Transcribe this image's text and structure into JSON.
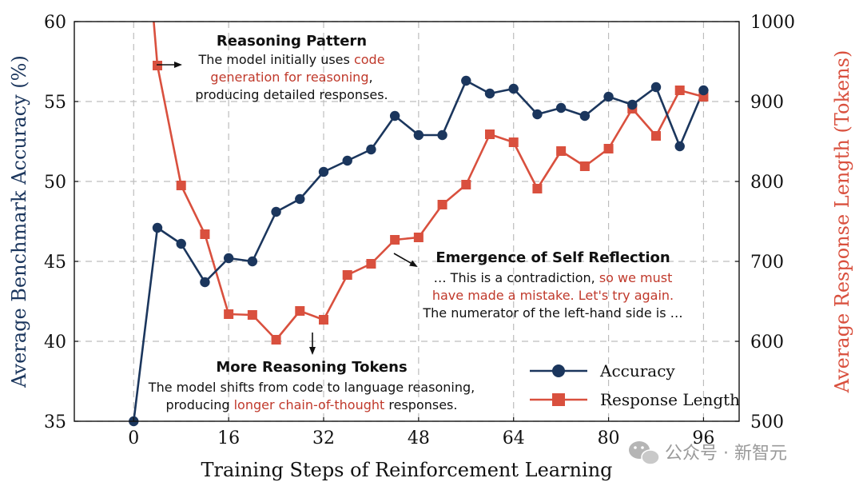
{
  "chart_data": {
    "type": "line",
    "xlabel": "Training Steps of Reinforcement Learning",
    "ylabel_left": "Average Benchmark Accuracy (%)",
    "ylabel_right": "Average Response Length (Tokens)",
    "xlim": [
      -10,
      102
    ],
    "ylim_left": [
      35,
      60
    ],
    "ylim_right": [
      500,
      1000
    ],
    "x_ticks": [
      "0",
      "16",
      "32",
      "48",
      "64",
      "80",
      "96"
    ],
    "x_tick_values": [
      0,
      16,
      32,
      48,
      64,
      80,
      96
    ],
    "y_left_ticks": [
      "35",
      "40",
      "45",
      "50",
      "55",
      "60"
    ],
    "y_left_tick_values": [
      35,
      40,
      45,
      50,
      55,
      60
    ],
    "y_right_ticks": [
      "500",
      "600",
      "700",
      "800",
      "900",
      "1000"
    ],
    "y_right_tick_values": [
      500,
      600,
      700,
      800,
      900,
      1000
    ],
    "grid": true,
    "legend_position": "bottom-right",
    "series": [
      {
        "name": "Accuracy",
        "axis": "left",
        "color": "#1b365d",
        "marker": "circle",
        "x": [
          0,
          4,
          8,
          12,
          16,
          20,
          24,
          28,
          32,
          36,
          40,
          44,
          48,
          52,
          56,
          60,
          64,
          68,
          72,
          76,
          80,
          84,
          88,
          92,
          96
        ],
        "values": [
          35.0,
          47.1,
          46.1,
          43.7,
          45.2,
          45.0,
          48.1,
          48.9,
          50.6,
          51.3,
          52.0,
          54.1,
          52.9,
          52.9,
          56.3,
          55.5,
          55.8,
          54.2,
          54.6,
          54.1,
          55.3,
          54.8,
          55.9,
          52.2,
          55.7
        ]
      },
      {
        "name": "Response Length",
        "axis": "right",
        "color": "#d9503e",
        "marker": "square",
        "x": [
          0,
          4,
          8,
          12,
          16,
          20,
          24,
          28,
          32,
          36,
          40,
          44,
          48,
          52,
          56,
          60,
          64,
          68,
          72,
          76,
          80,
          84,
          88,
          92,
          96
        ],
        "values": [
          1300,
          945,
          795,
          734,
          634,
          633,
          602,
          638,
          627,
          683,
          697,
          727,
          730,
          771,
          796,
          859,
          849,
          791,
          838,
          819,
          841,
          891,
          857,
          914,
          906
        ],
        "marker_from_index": 1
      }
    ],
    "annotations": [
      {
        "title": "Reasoning Pattern",
        "lines": [
          [
            {
              "t": "The model initially uses ",
              "c": "#111111"
            },
            {
              "t": "code",
              "c": "#c0392b"
            }
          ],
          [
            {
              "t": "generation for reasoning",
              "c": "#c0392b"
            },
            {
              "t": ",",
              "c": "#111111"
            }
          ],
          [
            {
              "t": "producing detailed responses.",
              "c": "#111111"
            }
          ]
        ]
      },
      {
        "title": "Emergence of Self Reflection",
        "lines": [
          [
            {
              "t": "… This is a contradiction, ",
              "c": "#111111"
            },
            {
              "t": "so we must",
              "c": "#c0392b"
            }
          ],
          [
            {
              "t": "have made a mistake. Let's try again.",
              "c": "#c0392b"
            }
          ],
          [
            {
              "t": "The numerator of the left-hand side is …",
              "c": "#111111"
            }
          ]
        ]
      },
      {
        "title": "More Reasoning Tokens",
        "lines": [
          [
            {
              "t": "The model shifts from code to language reasoning,",
              "c": "#111111"
            }
          ],
          [
            {
              "t": "producing ",
              "c": "#111111"
            },
            {
              "t": "longer chain-of-thought",
              "c": "#c0392b"
            },
            {
              "t": " responses.",
              "c": "#111111"
            }
          ]
        ]
      }
    ]
  },
  "watermark": "公众号 · 新智元"
}
